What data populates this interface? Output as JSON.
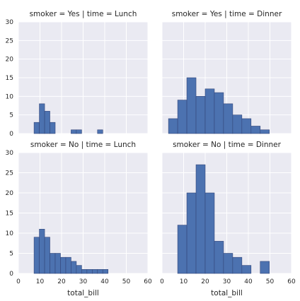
{
  "chart_data": {
    "type": "bar",
    "x_ticks": [
      0,
      10,
      20,
      30,
      40,
      50,
      60
    ],
    "y_ticks": [
      0,
      5,
      10,
      15,
      20,
      25,
      30
    ],
    "xlim": [
      0,
      60
    ],
    "ylim": [
      0,
      30
    ],
    "grid": true,
    "xlabel": "total_bill",
    "panels": [
      {
        "title": "smoker = Yes | time = Lunch",
        "bins": [
          [
            7.25,
            9.7
          ],
          [
            9.7,
            12.15
          ],
          [
            12.15,
            14.6
          ],
          [
            14.6,
            17.05
          ],
          [
            17.05,
            19.5
          ],
          [
            19.5,
            21.95
          ],
          [
            21.95,
            24.4
          ],
          [
            24.4,
            26.85
          ],
          [
            26.85,
            29.3
          ],
          [
            29.3,
            31.75
          ],
          [
            31.75,
            34.2
          ],
          [
            34.2,
            36.65
          ],
          [
            36.65,
            39.1
          ],
          [
            39.1,
            41.55
          ],
          [
            41.55,
            44.0
          ]
        ],
        "values": [
          3,
          8,
          6,
          3,
          0,
          0,
          0,
          1,
          1,
          0,
          0,
          0,
          1,
          0,
          0
        ]
      },
      {
        "title": "smoker = Yes | time = Dinner",
        "bins": [
          [
            3,
            7.25
          ],
          [
            7.25,
            11.5
          ],
          [
            11.5,
            15.75
          ],
          [
            15.75,
            20.0
          ],
          [
            20.0,
            24.25
          ],
          [
            24.25,
            28.5
          ],
          [
            28.5,
            32.75
          ],
          [
            32.75,
            37.0
          ],
          [
            37.0,
            41.25
          ],
          [
            41.25,
            45.5
          ],
          [
            45.5,
            49.75
          ]
        ],
        "values": [
          4,
          9,
          15,
          10,
          12,
          11,
          8,
          5,
          4,
          2,
          1
        ]
      },
      {
        "title": "smoker = No | time = Lunch",
        "bins": [
          [
            7.25,
            9.7
          ],
          [
            9.7,
            12.15
          ],
          [
            12.15,
            14.6
          ],
          [
            14.6,
            17.05
          ],
          [
            17.05,
            19.5
          ],
          [
            19.5,
            21.95
          ],
          [
            21.95,
            24.4
          ],
          [
            24.4,
            26.85
          ],
          [
            26.85,
            29.3
          ],
          [
            29.3,
            31.75
          ],
          [
            31.75,
            34.2
          ],
          [
            34.2,
            36.65
          ],
          [
            36.65,
            39.1
          ],
          [
            39.1,
            41.55
          ]
        ],
        "values": [
          9,
          11,
          9,
          5,
          5,
          4,
          4,
          3,
          2,
          1,
          1,
          1,
          1,
          1
        ]
      },
      {
        "title": "smoker = No | time = Dinner",
        "bins": [
          [
            7.25,
            11.5
          ],
          [
            11.5,
            15.75
          ],
          [
            15.75,
            20.0
          ],
          [
            20.0,
            24.25
          ],
          [
            24.25,
            28.5
          ],
          [
            28.5,
            32.75
          ],
          [
            32.75,
            37.0
          ],
          [
            37.0,
            41.25
          ],
          [
            41.25,
            45.5
          ],
          [
            45.5,
            49.75
          ]
        ],
        "values": [
          12,
          20,
          27,
          20,
          8,
          5,
          4,
          2,
          0,
          3
        ]
      }
    ]
  }
}
